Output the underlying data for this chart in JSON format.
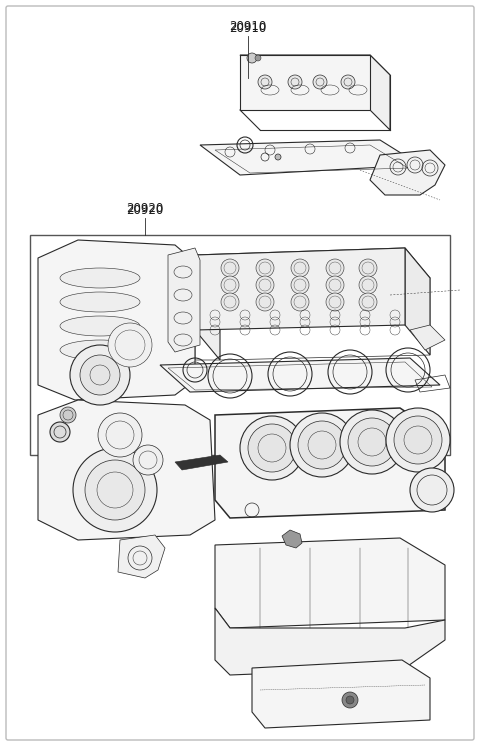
{
  "background_color": "#ffffff",
  "line_color": "#2a2a2a",
  "label_20910": "20910",
  "label_20920": "20920",
  "figsize": [
    4.8,
    7.46
  ],
  "dpi": 100,
  "border_color": "#bbbbbb",
  "label_color": "#1a1a1a"
}
